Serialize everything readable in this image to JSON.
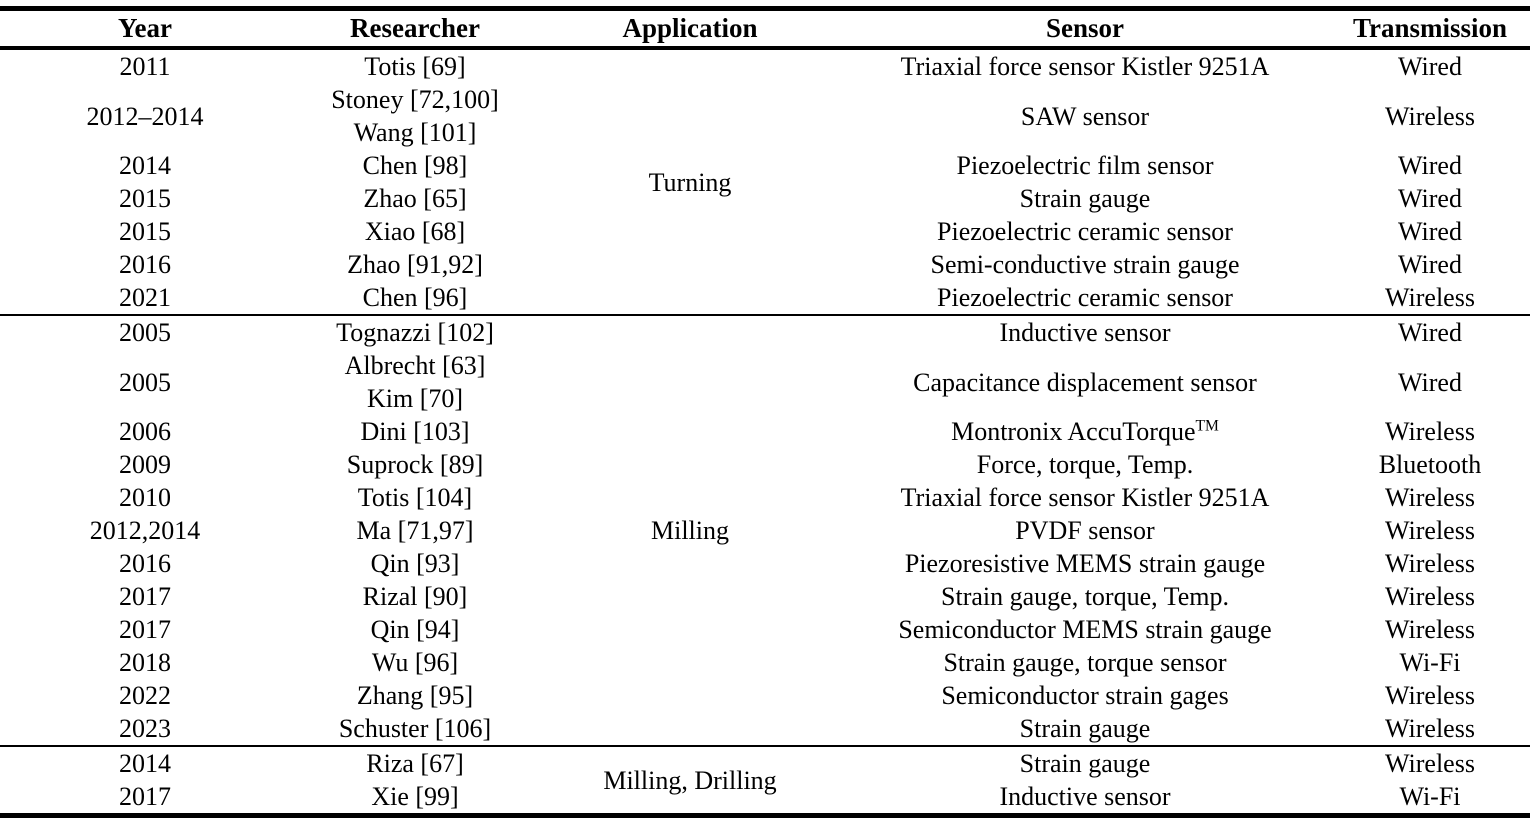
{
  "table": {
    "columns": [
      "Year",
      "Researcher",
      "Application",
      "Sensor",
      "Transmission"
    ],
    "text_color": "#000000",
    "background_color": "#ffffff",
    "sections": [
      {
        "application": "Turning",
        "rows": [
          {
            "year": "2011",
            "researchers": [
              "Totis [69]"
            ],
            "sensor": "Triaxial force sensor Kistler 9251A",
            "transmission": "Wired"
          },
          {
            "year": "2012–2014",
            "researchers": [
              "Stoney [72,100]",
              "Wang [101]"
            ],
            "sensor": "SAW sensor",
            "transmission": "Wireless"
          },
          {
            "year": "2014",
            "researchers": [
              "Chen [98]"
            ],
            "sensor": "Piezoelectric film sensor",
            "transmission": "Wired"
          },
          {
            "year": "2015",
            "researchers": [
              "Zhao [65]"
            ],
            "sensor": "Strain gauge",
            "transmission": "Wired"
          },
          {
            "year": "2015",
            "researchers": [
              "Xiao [68]"
            ],
            "sensor": "Piezoelectric ceramic sensor",
            "transmission": "Wired"
          },
          {
            "year": "2016",
            "researchers": [
              "Zhao [91,92]"
            ],
            "sensor": "Semi-conductive strain gauge",
            "transmission": "Wired"
          },
          {
            "year": "2021",
            "researchers": [
              "Chen [96]"
            ],
            "sensor": "Piezoelectric ceramic sensor",
            "transmission": "Wireless"
          }
        ]
      },
      {
        "application": "Milling",
        "rows": [
          {
            "year": "2005",
            "researchers": [
              "Tognazzi [102]"
            ],
            "sensor": "Inductive sensor",
            "transmission": "Wired"
          },
          {
            "year": "2005",
            "researchers": [
              "Albrecht [63]",
              "Kim [70]"
            ],
            "sensor": "Capacitance displacement sensor",
            "transmission": "Wired"
          },
          {
            "year": "2006",
            "researchers": [
              "Dini [103]"
            ],
            "sensor": "Montronix AccuTorque",
            "sensor_sup": "TM",
            "transmission": "Wireless"
          },
          {
            "year": "2009",
            "researchers": [
              "Suprock [89]"
            ],
            "sensor": "Force, torque, Temp.",
            "transmission": "Bluetooth"
          },
          {
            "year": "2010",
            "researchers": [
              "Totis [104]"
            ],
            "sensor": "Triaxial force sensor Kistler 9251A",
            "transmission": "Wireless"
          },
          {
            "year": "2012,2014",
            "researchers": [
              "Ma [71,97]"
            ],
            "sensor": "PVDF sensor",
            "transmission": "Wireless"
          },
          {
            "year": "2016",
            "researchers": [
              "Qin [93]"
            ],
            "sensor": "Piezoresistive MEMS strain gauge",
            "transmission": "Wireless"
          },
          {
            "year": "2017",
            "researchers": [
              "Rizal [90]"
            ],
            "sensor": "Strain gauge, torque, Temp.",
            "transmission": "Wireless"
          },
          {
            "year": "2017",
            "researchers": [
              "Qin [94]"
            ],
            "sensor": "Semiconductor MEMS strain gauge",
            "transmission": "Wireless"
          },
          {
            "year": "2018",
            "researchers": [
              "Wu [96]"
            ],
            "sensor": "Strain gauge, torque sensor",
            "transmission": "Wi-Fi"
          },
          {
            "year": "2022",
            "researchers": [
              "Zhang [95]"
            ],
            "sensor": "Semiconductor strain gages",
            "transmission": "Wireless"
          },
          {
            "year": "2023",
            "researchers": [
              "Schuster [106]"
            ],
            "sensor": "Strain gauge",
            "transmission": "Wireless"
          }
        ]
      },
      {
        "application": "Milling, Drilling",
        "rows": [
          {
            "year": "2014",
            "researchers": [
              "Riza [67]"
            ],
            "sensor": "Strain gauge",
            "transmission": "Wireless"
          },
          {
            "year": "2017",
            "researchers": [
              "Xie [99]"
            ],
            "sensor": "Inductive sensor",
            "transmission": "Wi-Fi"
          }
        ]
      }
    ]
  }
}
